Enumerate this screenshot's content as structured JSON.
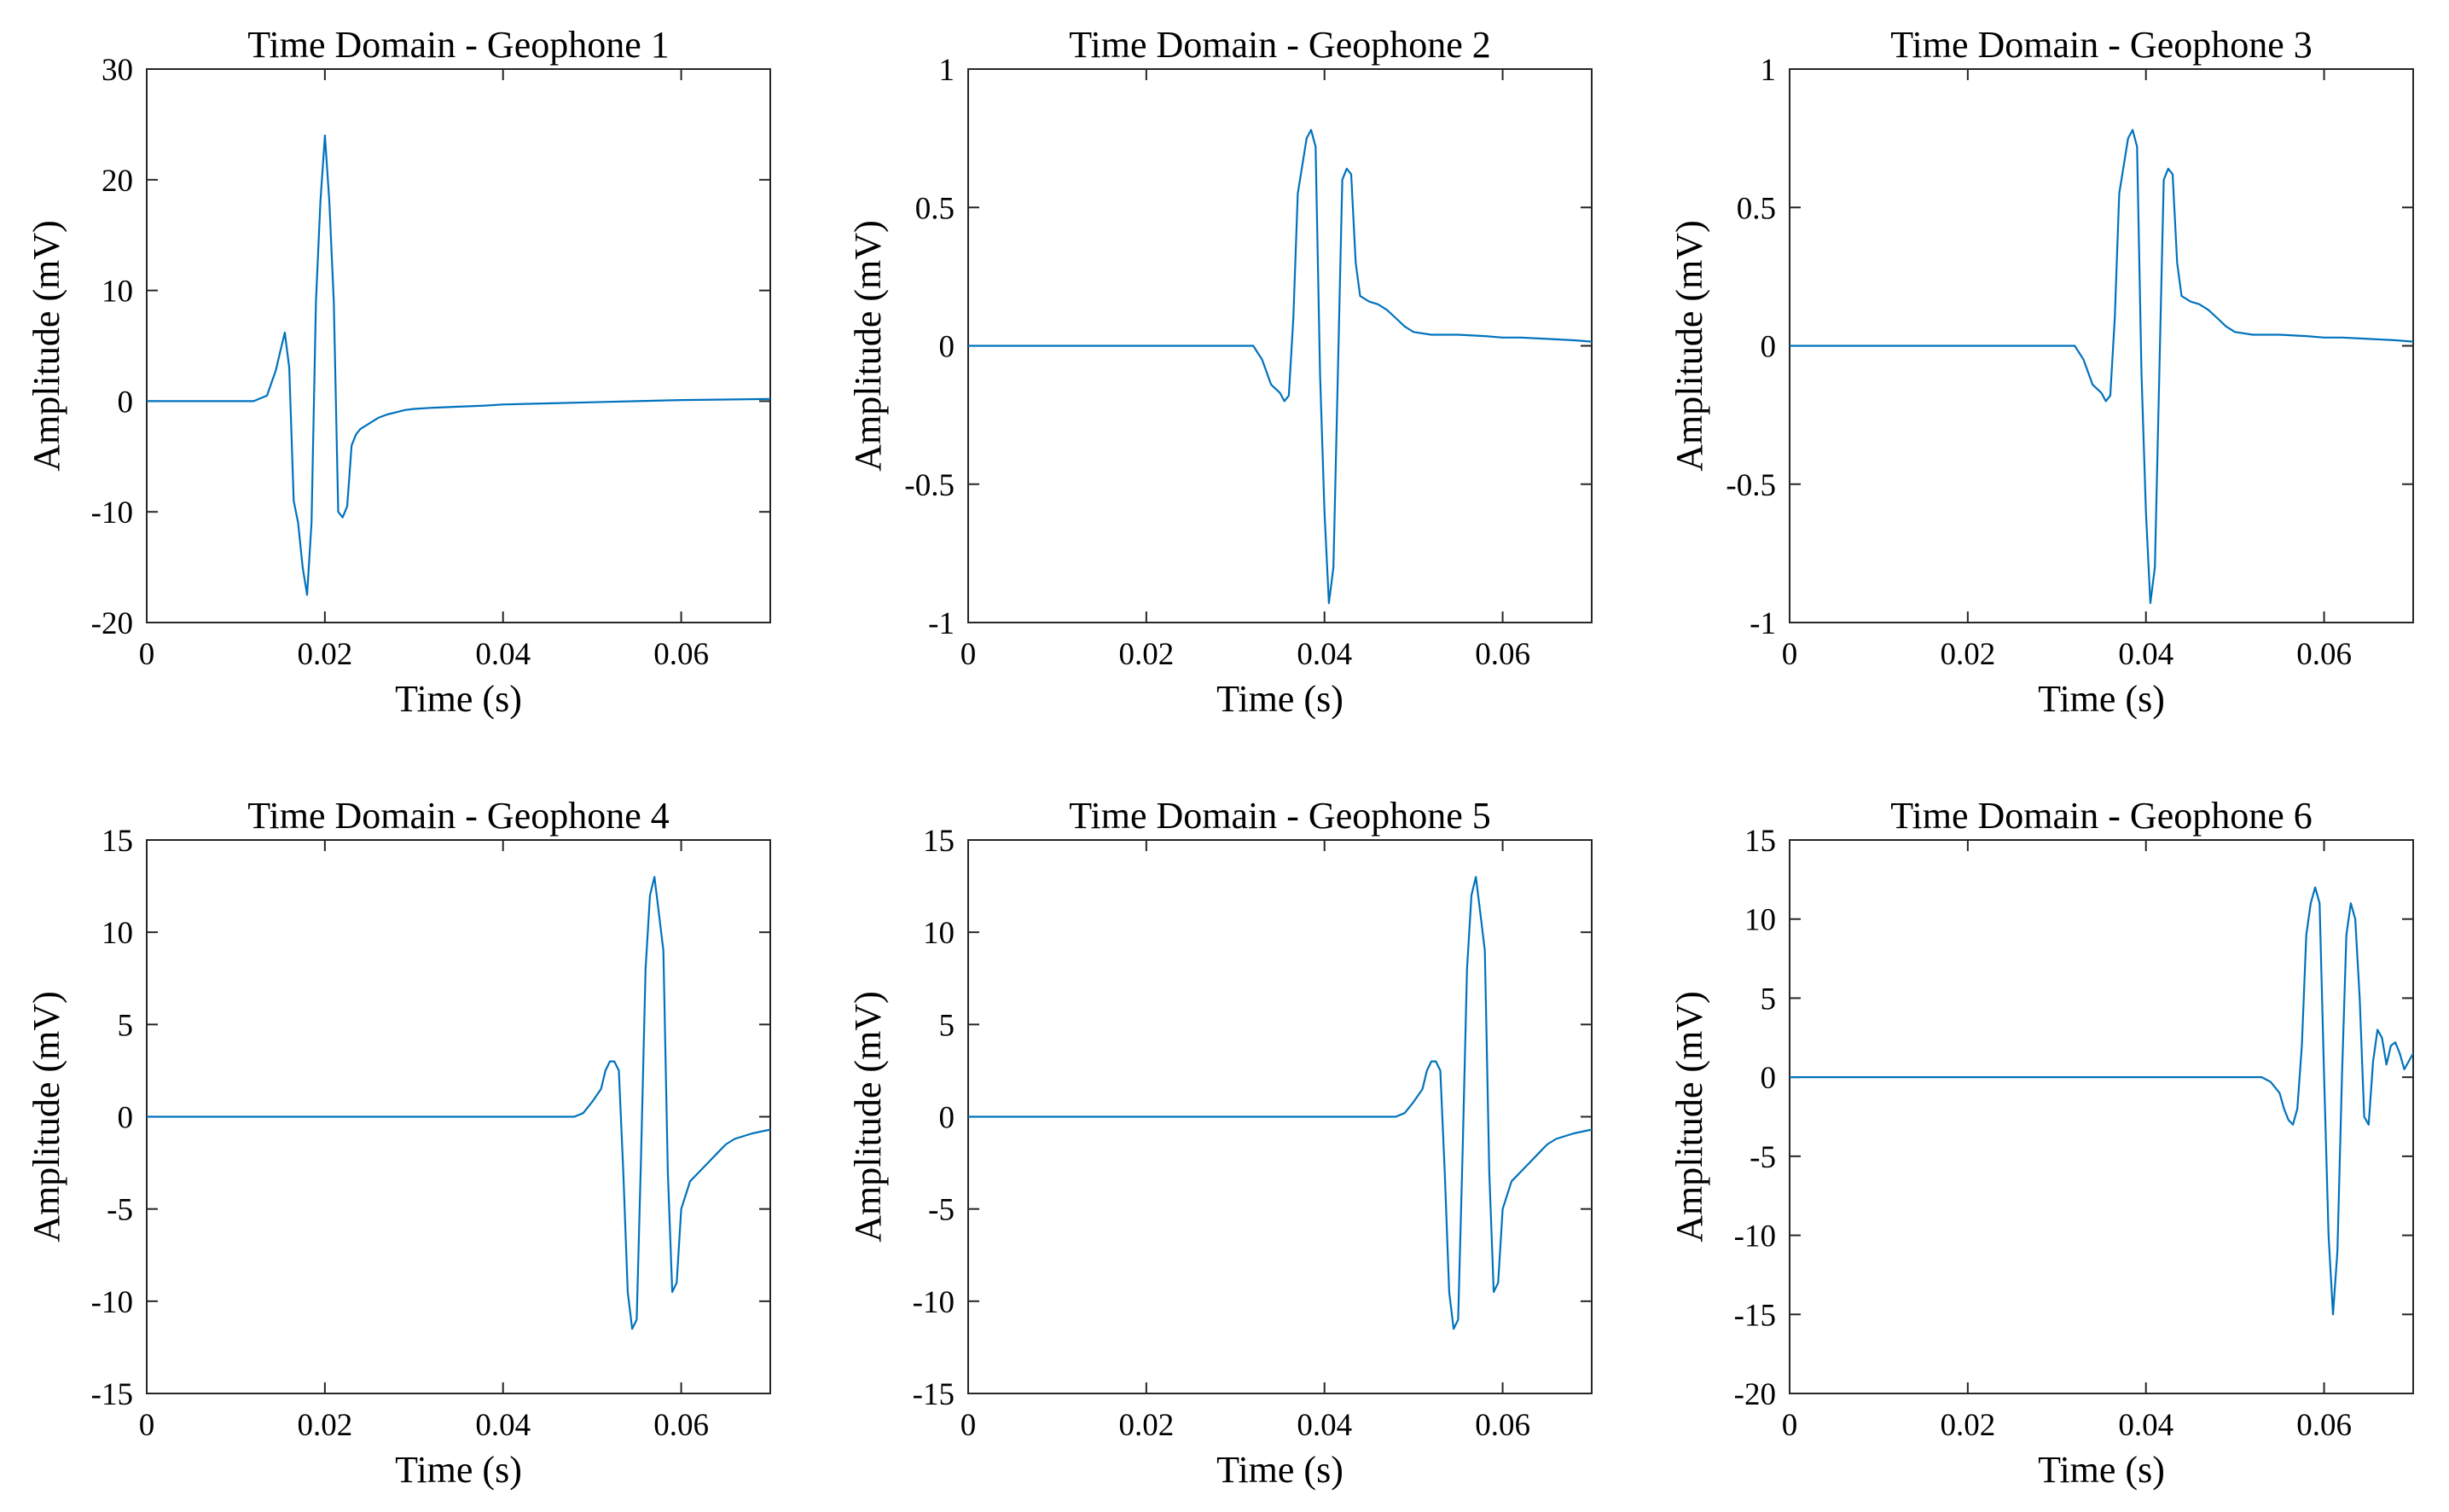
{
  "figure": {
    "background": "#ffffff",
    "line_color": "#0072bd",
    "axis_color": "#262626"
  },
  "chart_data": [
    {
      "type": "line",
      "title": "Time Domain - Geophone 1",
      "xlabel": "Time (s)",
      "ylabel": "Amplitude (mV)",
      "xlim": [
        0,
        0.07
      ],
      "ylim": [
        -20,
        30
      ],
      "xticks": [
        0,
        0.02,
        0.04,
        0.06
      ],
      "xtick_labels": [
        "0",
        "0.02",
        "0.04",
        "0.06"
      ],
      "yticks": [
        -20,
        -10,
        0,
        10,
        20,
        30
      ],
      "ytick_labels": [
        "-20",
        "-10",
        "0",
        "10",
        "20",
        "30"
      ],
      "grid": false,
      "series": [
        {
          "name": "Geophone 1",
          "x": [
            0,
            0.012,
            0.0135,
            0.0145,
            0.015,
            0.0155,
            0.016,
            0.0165,
            0.017,
            0.0175,
            0.018,
            0.0185,
            0.019,
            0.0195,
            0.02,
            0.0205,
            0.021,
            0.0215,
            0.022,
            0.0225,
            0.023,
            0.0235,
            0.024,
            0.025,
            0.026,
            0.027,
            0.028,
            0.029,
            0.03,
            0.032,
            0.035,
            0.038,
            0.04,
            0.045,
            0.05,
            0.055,
            0.06,
            0.065,
            0.07
          ],
          "y": [
            0,
            0,
            0.5,
            2.8,
            4.5,
            6.2,
            3,
            -9,
            -11,
            -15,
            -17.5,
            -11,
            9,
            18,
            24,
            18,
            9,
            -10,
            -10.5,
            -9.5,
            -4,
            -3,
            -2.5,
            -2,
            -1.5,
            -1.2,
            -1,
            -0.8,
            -0.7,
            -0.6,
            -0.5,
            -0.4,
            -0.3,
            -0.2,
            -0.1,
            0,
            0.1,
            0.15,
            0.2
          ]
        }
      ]
    },
    {
      "type": "line",
      "title": "Time Domain - Geophone 2",
      "xlabel": "Time (s)",
      "ylabel": "Amplitude (mV)",
      "xlim": [
        0,
        0.07
      ],
      "ylim": [
        -1,
        1
      ],
      "xticks": [
        0,
        0.02,
        0.04,
        0.06
      ],
      "xtick_labels": [
        "0",
        "0.02",
        "0.04",
        "0.06"
      ],
      "yticks": [
        -1,
        -0.5,
        0,
        0.5,
        1
      ],
      "ytick_labels": [
        "-1",
        "-0.5",
        "0",
        "0.5",
        "1"
      ],
      "grid": false,
      "series": [
        {
          "name": "Geophone 2",
          "x": [
            0,
            0.032,
            0.033,
            0.034,
            0.035,
            0.0355,
            0.036,
            0.0365,
            0.037,
            0.0375,
            0.038,
            0.0385,
            0.039,
            0.0395,
            0.04,
            0.0405,
            0.041,
            0.0415,
            0.042,
            0.0425,
            0.043,
            0.0435,
            0.044,
            0.0445,
            0.045,
            0.046,
            0.047,
            0.048,
            0.049,
            0.05,
            0.052,
            0.055,
            0.058,
            0.06,
            0.062,
            0.065,
            0.068,
            0.07
          ],
          "y": [
            0,
            0,
            -0.05,
            -0.14,
            -0.17,
            -0.2,
            -0.18,
            0.1,
            0.55,
            0.65,
            0.75,
            0.78,
            0.72,
            -0.1,
            -0.6,
            -0.93,
            -0.8,
            -0.1,
            0.6,
            0.64,
            0.62,
            0.3,
            0.18,
            0.17,
            0.16,
            0.15,
            0.13,
            0.1,
            0.07,
            0.05,
            0.04,
            0.04,
            0.035,
            0.03,
            0.03,
            0.025,
            0.02,
            0.015
          ]
        }
      ]
    },
    {
      "type": "line",
      "title": "Time Domain - Geophone 3",
      "xlabel": "Time (s)",
      "ylabel": "Amplitude (mV)",
      "xlim": [
        0,
        0.07
      ],
      "ylim": [
        -1,
        1
      ],
      "xticks": [
        0,
        0.02,
        0.04,
        0.06
      ],
      "xtick_labels": [
        "0",
        "0.02",
        "0.04",
        "0.06"
      ],
      "yticks": [
        -1,
        -0.5,
        0,
        0.5,
        1
      ],
      "ytick_labels": [
        "-1",
        "-0.5",
        "0",
        "0.5",
        "1"
      ],
      "grid": false,
      "series": [
        {
          "name": "Geophone 3",
          "x": [
            0,
            0.032,
            0.033,
            0.034,
            0.035,
            0.0355,
            0.036,
            0.0365,
            0.037,
            0.0375,
            0.038,
            0.0385,
            0.039,
            0.0395,
            0.04,
            0.0405,
            0.041,
            0.0415,
            0.042,
            0.0425,
            0.043,
            0.0435,
            0.044,
            0.0445,
            0.045,
            0.046,
            0.047,
            0.048,
            0.049,
            0.05,
            0.052,
            0.055,
            0.058,
            0.06,
            0.062,
            0.065,
            0.068,
            0.07
          ],
          "y": [
            0,
            0,
            -0.05,
            -0.14,
            -0.17,
            -0.2,
            -0.18,
            0.1,
            0.55,
            0.65,
            0.75,
            0.78,
            0.72,
            -0.1,
            -0.6,
            -0.93,
            -0.8,
            -0.1,
            0.6,
            0.64,
            0.62,
            0.3,
            0.18,
            0.17,
            0.16,
            0.15,
            0.13,
            0.1,
            0.07,
            0.05,
            0.04,
            0.04,
            0.035,
            0.03,
            0.03,
            0.025,
            0.02,
            0.015
          ]
        }
      ]
    },
    {
      "type": "line",
      "title": "Time Domain - Geophone 4",
      "xlabel": "Time (s)",
      "ylabel": "Amplitude (mV)",
      "xlim": [
        0,
        0.07
      ],
      "ylim": [
        -15,
        15
      ],
      "xticks": [
        0,
        0.02,
        0.04,
        0.06
      ],
      "xtick_labels": [
        "0",
        "0.02",
        "0.04",
        "0.06"
      ],
      "yticks": [
        -15,
        -10,
        -5,
        0,
        5,
        10,
        15
      ],
      "ytick_labels": [
        "-15",
        "-10",
        "-5",
        "0",
        "5",
        "10",
        "15"
      ],
      "grid": false,
      "series": [
        {
          "name": "Geophone 4",
          "x": [
            0,
            0.048,
            0.049,
            0.05,
            0.051,
            0.0515,
            0.052,
            0.0525,
            0.053,
            0.0535,
            0.054,
            0.0545,
            0.055,
            0.0555,
            0.056,
            0.0565,
            0.057,
            0.0575,
            0.058,
            0.0585,
            0.059,
            0.0595,
            0.06,
            0.061,
            0.062,
            0.063,
            0.064,
            0.065,
            0.066,
            0.068,
            0.07
          ],
          "y": [
            0,
            0,
            0.2,
            0.8,
            1.5,
            2.5,
            3,
            3,
            2.5,
            -3,
            -9.5,
            -11.5,
            -11,
            -2,
            8,
            12,
            13,
            11,
            9,
            -3,
            -9.5,
            -9,
            -5,
            -3.5,
            -3,
            -2.5,
            -2,
            -1.5,
            -1.2,
            -0.9,
            -0.7
          ]
        }
      ]
    },
    {
      "type": "line",
      "title": "Time Domain - Geophone 5",
      "xlabel": "Time (s)",
      "ylabel": "Amplitude (mV)",
      "xlim": [
        0,
        0.07
      ],
      "ylim": [
        -15,
        15
      ],
      "xticks": [
        0,
        0.02,
        0.04,
        0.06
      ],
      "xtick_labels": [
        "0",
        "0.02",
        "0.04",
        "0.06"
      ],
      "yticks": [
        -15,
        -10,
        -5,
        0,
        5,
        10,
        15
      ],
      "ytick_labels": [
        "-15",
        "-10",
        "-5",
        "0",
        "5",
        "10",
        "15"
      ],
      "grid": false,
      "series": [
        {
          "name": "Geophone 5",
          "x": [
            0,
            0.048,
            0.049,
            0.05,
            0.051,
            0.0515,
            0.052,
            0.0525,
            0.053,
            0.0535,
            0.054,
            0.0545,
            0.055,
            0.0555,
            0.056,
            0.0565,
            0.057,
            0.0575,
            0.058,
            0.0585,
            0.059,
            0.0595,
            0.06,
            0.061,
            0.062,
            0.063,
            0.064,
            0.065,
            0.066,
            0.068,
            0.07
          ],
          "y": [
            0,
            0,
            0.2,
            0.8,
            1.5,
            2.5,
            3,
            3,
            2.5,
            -3,
            -9.5,
            -11.5,
            -11,
            -2,
            8,
            12,
            13,
            11,
            9,
            -3,
            -9.5,
            -9,
            -5,
            -3.5,
            -3,
            -2.5,
            -2,
            -1.5,
            -1.2,
            -0.9,
            -0.7
          ]
        }
      ]
    },
    {
      "type": "line",
      "title": "Time Domain - Geophone 6",
      "xlabel": "Time (s)",
      "ylabel": "Amplitude (mV)",
      "xlim": [
        0,
        0.07
      ],
      "ylim": [
        -20,
        15
      ],
      "xticks": [
        0,
        0.02,
        0.04,
        0.06
      ],
      "xtick_labels": [
        "0",
        "0.02",
        "0.04",
        "0.06"
      ],
      "yticks": [
        -20,
        -15,
        -10,
        -5,
        0,
        5,
        10,
        15
      ],
      "ytick_labels": [
        "-20",
        "-15",
        "-10",
        "-5",
        "0",
        "5",
        "10",
        "15"
      ],
      "grid": false,
      "series": [
        {
          "name": "Geophone 6",
          "x": [
            0,
            0.053,
            0.054,
            0.055,
            0.0555,
            0.056,
            0.0565,
            0.057,
            0.0575,
            0.058,
            0.0585,
            0.059,
            0.0595,
            0.06,
            0.0605,
            0.061,
            0.0615,
            0.062,
            0.0625,
            0.063,
            0.0635,
            0.064,
            0.0645,
            0.065,
            0.0655,
            0.066,
            0.0665,
            0.067,
            0.0675,
            0.068,
            0.0685,
            0.069,
            0.07
          ],
          "y": [
            0,
            0,
            -0.3,
            -1,
            -2,
            -2.7,
            -3,
            -2,
            2,
            9,
            11,
            12,
            11,
            0,
            -10,
            -15,
            -11,
            0,
            9,
            11,
            10,
            5,
            -2.5,
            -3,
            1,
            3,
            2.5,
            0.8,
            2,
            2.2,
            1.5,
            0.5,
            1.5
          ]
        }
      ]
    }
  ]
}
